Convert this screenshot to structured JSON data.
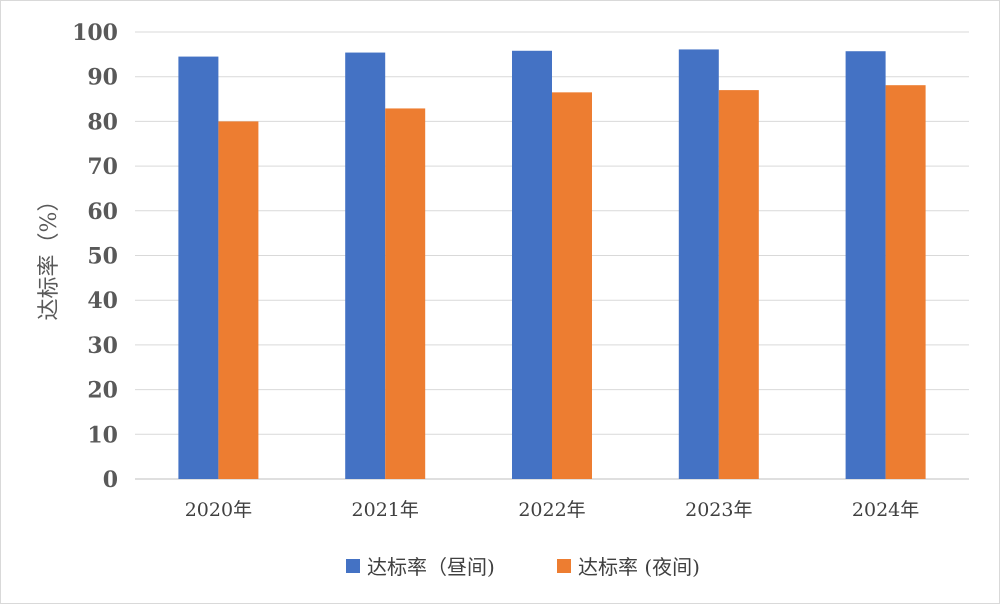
{
  "chart_data": {
    "type": "bar",
    "title": "",
    "xlabel": "",
    "ylabel": "达标率（%）",
    "ylim": [
      0,
      100
    ],
    "yticks": [
      0,
      10,
      20,
      30,
      40,
      50,
      60,
      70,
      80,
      90,
      100
    ],
    "categories": [
      "2020年",
      "2021年",
      "2022年",
      "2023年",
      "2024年"
    ],
    "series": [
      {
        "name": "达标率（昼间)",
        "color": "#4472c4",
        "values": [
          94.5,
          95.4,
          95.8,
          96.1,
          95.7
        ]
      },
      {
        "name": "达标率 (夜间)",
        "color": "#ed7d31",
        "values": [
          80.0,
          82.9,
          86.5,
          87.0,
          88.1
        ]
      }
    ],
    "grid": true,
    "legend_position": "bottom"
  }
}
